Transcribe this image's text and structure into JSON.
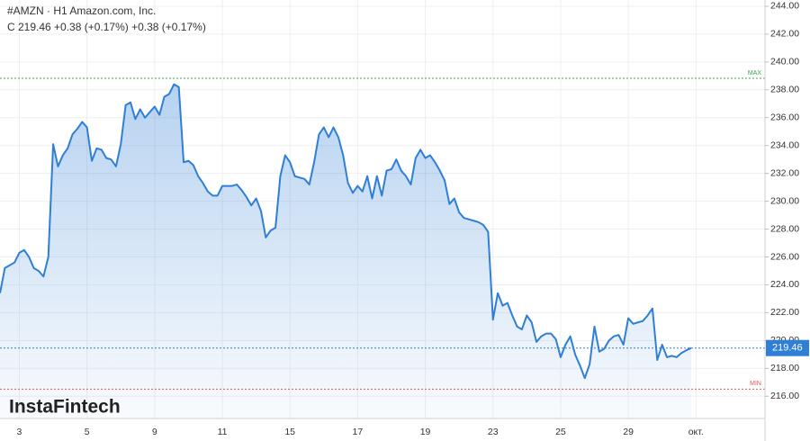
{
  "chart_data": {
    "type": "area",
    "title": "#AMZN · H1 Amazon.com, Inc.",
    "subtitle": "C 219.46 +0.38 (+0.17%) +0.38 (+0.17%)",
    "watermark": "InstaFintech",
    "color": "#2f7fd6",
    "grid": true,
    "categories": [
      null,
      null,
      null,
      null,
      "3",
      null,
      null,
      null,
      null,
      null,
      null,
      null,
      null,
      null,
      null,
      null,
      null,
      null,
      "5",
      null,
      null,
      null,
      null,
      null,
      null,
      null,
      null,
      null,
      null,
      null,
      null,
      null,
      "9",
      null,
      null,
      null,
      null,
      null,
      null,
      null,
      null,
      null,
      null,
      null,
      null,
      null,
      "11",
      null,
      null,
      null,
      null,
      null,
      null,
      null,
      null,
      null,
      null,
      null,
      null,
      null,
      "15",
      null,
      null,
      null,
      null,
      null,
      null,
      null,
      null,
      null,
      null,
      null,
      null,
      null,
      "17",
      null,
      null,
      null,
      null,
      null,
      null,
      null,
      null,
      null,
      null,
      null,
      null,
      null,
      "19",
      null,
      null,
      null,
      null,
      null,
      null,
      null,
      null,
      null,
      null,
      null,
      null,
      null,
      "23",
      null,
      null,
      null,
      null,
      null,
      null,
      null,
      null,
      null,
      null,
      null,
      null,
      null,
      "25",
      null,
      null,
      null,
      null,
      null,
      null,
      null,
      null,
      null,
      null,
      null,
      null,
      null,
      "29",
      null,
      null,
      null,
      null,
      null,
      null,
      null,
      null,
      null,
      null,
      null,
      null,
      null,
      "окт.",
      null
    ],
    "values": [
      223.4,
      225.2,
      225.4,
      225.6,
      226.3,
      226.5,
      226.0,
      225.2,
      225.0,
      224.6,
      226.0,
      234.1,
      232.5,
      233.3,
      233.8,
      234.8,
      235.2,
      235.7,
      235.3,
      232.9,
      233.8,
      233.7,
      233.1,
      233.0,
      232.5,
      234.1,
      236.9,
      237.1,
      235.9,
      236.6,
      236.0,
      236.4,
      236.8,
      236.2,
      237.5,
      237.7,
      238.4,
      238.2,
      232.8,
      232.9,
      232.6,
      231.8,
      231.3,
      230.7,
      230.4,
      230.4,
      231.1,
      231.1,
      231.1,
      231.2,
      230.8,
      230.3,
      229.7,
      230.2,
      229.3,
      227.4,
      227.9,
      228.1,
      231.8,
      233.3,
      232.8,
      231.8,
      231.7,
      231.6,
      231.2,
      232.8,
      234.8,
      235.3,
      234.6,
      235.3,
      234.6,
      233.3,
      231.3,
      230.6,
      231.1,
      230.7,
      231.8,
      230.2,
      231.8,
      230.4,
      232.2,
      232.3,
      233.0,
      232.2,
      231.8,
      231.2,
      233.1,
      233.7,
      233.1,
      233.3,
      232.8,
      232.2,
      231.5,
      229.8,
      230.2,
      229.2,
      228.8,
      228.7,
      228.6,
      228.5,
      228.3,
      227.8,
      221.5,
      223.4,
      222.5,
      222.7,
      221.8,
      221.0,
      220.8,
      221.8,
      221.3,
      219.9,
      220.3,
      220.5,
      220.5,
      220.1,
      218.8,
      219.7,
      220.3,
      219.0,
      218.2,
      217.3,
      218.3,
      221.0,
      219.2,
      219.4,
      220.0,
      220.3,
      220.4,
      219.7,
      221.6,
      221.2,
      221.3,
      221.4,
      221.8,
      222.3,
      218.6,
      219.7,
      218.8,
      218.9,
      218.8,
      219.1,
      219.3,
      219.46,
      null,
      null
    ],
    "ylim": [
      214.4,
      244.45
    ],
    "yticks": [
      {
        "value": 216,
        "label": "216.00"
      },
      {
        "value": 218,
        "label": "218.00"
      },
      {
        "value": 220,
        "label": "220.00"
      },
      {
        "value": 222,
        "label": "222.00"
      },
      {
        "value": 224,
        "label": "224.00"
      },
      {
        "value": 226,
        "label": "226.00"
      },
      {
        "value": 228,
        "label": "228.00"
      },
      {
        "value": 230,
        "label": "230.00"
      },
      {
        "value": 232,
        "label": "232.00"
      },
      {
        "value": 234,
        "label": "234.00"
      },
      {
        "value": 236,
        "label": "236.00"
      },
      {
        "value": 238,
        "label": "238.00"
      },
      {
        "value": 240,
        "label": "240.00"
      },
      {
        "value": 242,
        "label": "242.00"
      },
      {
        "value": 244,
        "label": "244.00"
      }
    ],
    "last_price": {
      "value": 219.46,
      "label": "219.46"
    },
    "max_line": {
      "value": 238.83,
      "label": "MAX",
      "color": "#3aa655"
    },
    "min_line": {
      "value": 216.51,
      "label": "MIN",
      "color": "#e05555"
    }
  }
}
